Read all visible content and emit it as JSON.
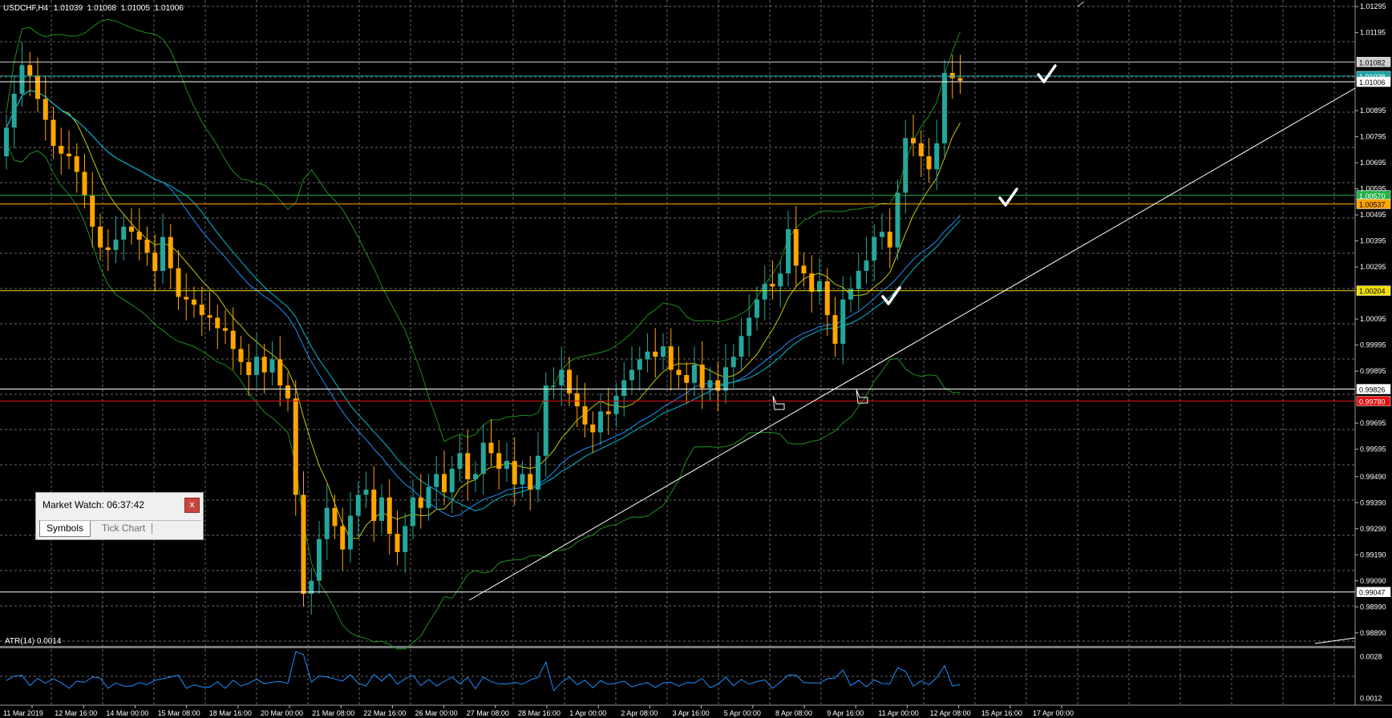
{
  "header": {
    "symbol": "USDCHF,H4",
    "open": "1.01039",
    "high": "1.01068",
    "low": "1.01005",
    "close": "1.01006"
  },
  "price_axis": {
    "ticks": [
      "1.01295",
      "1.01195",
      "1.00895",
      "1.00795",
      "1.00695",
      "1.00595",
      "1.00495",
      "1.00395",
      "1.00295",
      "1.00095",
      "0.99995",
      "0.99895",
      "0.99695",
      "0.99595",
      "0.99490",
      "0.99390",
      "0.99290",
      "0.99190",
      "0.99090",
      "0.98990",
      "0.98890"
    ],
    "levels": [
      {
        "price": "1.01082",
        "color": "#cfcfcf",
        "text_color": "#000000"
      },
      {
        "price": "1.01028",
        "color": "#1fa3a3",
        "text_color": "#ffffff"
      },
      {
        "price": "1.01006",
        "color": "#ffffff",
        "text_color": "#000000"
      },
      {
        "price": "1.00570",
        "color": "#22b04a",
        "text_color": "#ffffff"
      },
      {
        "price": "1.00537",
        "color": "#ffa500",
        "text_color": "#000000"
      },
      {
        "price": "1.00204",
        "color": "#f0e000",
        "text_color": "#000000"
      },
      {
        "price": "0.99826",
        "color": "#ffffff",
        "text_color": "#000000"
      },
      {
        "price": "0.99780",
        "color": "#e01010",
        "text_color": "#ffffff"
      },
      {
        "price": "0.99047",
        "color": "#ffffff",
        "text_color": "#000000"
      }
    ]
  },
  "time_axis": {
    "labels": [
      "11 Mar 2019",
      "12 Mar 16:00",
      "14 Mar 00:00",
      "15 Mar 08:00",
      "18 Mar 16:00",
      "20 Mar 00:00",
      "21 Mar 08:00",
      "22 Mar 16:00",
      "26 Mar 00:00",
      "27 Mar 08:00",
      "28 Mar 16:00",
      "1 Apr 00:00",
      "2 Apr 08:00",
      "3 Apr 16:00",
      "5 Apr 00:00",
      "8 Apr 08:00",
      "9 Apr 16:00",
      "11 Apr 00:00",
      "12 Apr 08:00",
      "15 Apr 16:00",
      "17 Apr 00:00"
    ]
  },
  "indicator": {
    "label": "ATR(14) 0.0014",
    "ticks": [
      "0.0028",
      "0.0012"
    ]
  },
  "market_watch": {
    "title": "Market Watch: 06:37:42",
    "close_label": "x",
    "tabs": [
      "Symbols",
      "Tick Chart"
    ]
  },
  "colors": {
    "background": "#000000",
    "grid": "#6a6a6a",
    "bull": "#26a69a",
    "bear": "#ffa500",
    "bands": "#1f8f1f",
    "ma_fast": "#c8c800",
    "ma_slow": "#1e90ff",
    "atr": "#1e90ff"
  },
  "chart_data": {
    "type": "candlestick",
    "symbol": "USDCHF",
    "timeframe": "H4",
    "ylim": [
      0.9884,
      1.0132
    ],
    "close": [
      1.0083,
      1.0096,
      1.0107,
      1.0103,
      1.0094,
      1.0086,
      1.0076,
      1.0073,
      1.0072,
      1.0066,
      1.0057,
      1.0045,
      1.0037,
      1.0036,
      1.004,
      1.0045,
      1.0043,
      1.004,
      1.0035,
      1.0028,
      1.0041,
      1.0029,
      1.0018,
      1.0017,
      1.0015,
      1.0011,
      1.001,
      1.0006,
      1.0005,
      0.9998,
      0.9993,
      0.9988,
      0.9995,
      0.9989,
      0.9994,
      0.9984,
      0.9979,
      0.9942,
      0.9904,
      0.9909,
      0.9925,
      0.9937,
      0.993,
      0.9921,
      0.9934,
      0.9942,
      0.9944,
      0.9932,
      0.9941,
      0.9927,
      0.992,
      0.993,
      0.9941,
      0.9937,
      0.9945,
      0.995,
      0.9943,
      0.9952,
      0.9958,
      0.9948,
      0.995,
      0.9962,
      0.9958,
      0.9952,
      0.9955,
      0.9946,
      0.995,
      0.9944,
      0.9957,
      0.9984,
      0.9984,
      0.999,
      0.9981,
      0.9976,
      0.9969,
      0.9966,
      0.9974,
      0.9973,
      0.998,
      0.9986,
      0.999,
      0.9994,
      0.9997,
      0.9995,
      0.9999,
      0.999,
      0.9988,
      0.9985,
      0.9992,
      0.9983,
      0.9986,
      0.9982,
      0.9991,
      0.9995,
      1.0003,
      1.001,
      1.0017,
      1.0023,
      1.0022,
      1.0027,
      1.0044,
      1.003,
      1.0027,
      1.002,
      1.0024,
      1.0011,
      1.0,
      1.0017,
      1.0021,
      1.0028,
      1.0032,
      1.0041,
      1.0043,
      1.0037,
      1.0058,
      1.0079,
      1.0077,
      1.0072,
      1.0067,
      1.0077,
      1.0104,
      1.0102,
      1.0101
    ]
  }
}
